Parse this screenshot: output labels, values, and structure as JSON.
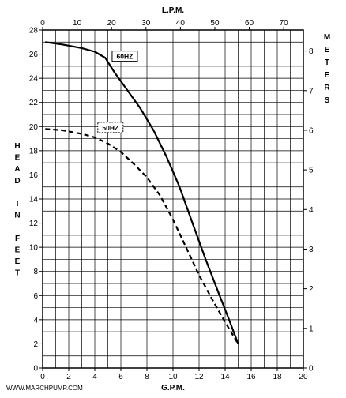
{
  "chart_data": {
    "type": "line",
    "x_bottom": {
      "label": "G.P.M.",
      "range": [
        0,
        20
      ],
      "ticks": [
        0,
        2,
        4,
        6,
        8,
        10,
        12,
        14,
        16,
        18,
        20
      ]
    },
    "x_top": {
      "label": "L.P.M.",
      "range": [
        0,
        75.7
      ],
      "ticks": [
        0,
        10,
        20,
        30,
        40,
        50,
        60,
        70
      ]
    },
    "y_left": {
      "label": "HEAD IN FEET",
      "range": [
        0,
        28
      ],
      "ticks": [
        0,
        2,
        4,
        6,
        8,
        10,
        12,
        14,
        16,
        18,
        20,
        22,
        24,
        26,
        28
      ]
    },
    "y_right": {
      "label": "METERS",
      "range": [
        0,
        8.53
      ],
      "ticks": [
        0,
        1,
        2,
        3,
        4,
        5,
        6,
        7,
        8
      ]
    },
    "grid": true,
    "series": [
      {
        "name": "60HZ",
        "style": "solid",
        "color": "#000000",
        "x": [
          0.2,
          1.5,
          3,
          4,
          4.8,
          5.5,
          6.5,
          7.5,
          8.5,
          9.5,
          10.5,
          11.5,
          12.5,
          13.5,
          14.3,
          15.0
        ],
        "y": [
          27,
          26.8,
          26.5,
          26.2,
          25.7,
          24.5,
          23.0,
          21.5,
          19.7,
          17.5,
          15.0,
          12.0,
          9.0,
          6.2,
          4.0,
          2.0
        ]
      },
      {
        "name": "50HZ",
        "style": "dashed",
        "color": "#000000",
        "x": [
          0.2,
          1.5,
          3,
          4,
          5,
          6,
          7,
          8,
          9,
          10,
          11,
          12,
          13,
          14,
          15.0
        ],
        "y": [
          19.8,
          19.7,
          19.4,
          19.1,
          18.6,
          17.9,
          16.9,
          15.8,
          14.3,
          12.3,
          10.0,
          7.7,
          5.7,
          3.8,
          2.0
        ]
      }
    ]
  },
  "footer": {
    "website": "WWW.MARCHPUMP.COM"
  }
}
